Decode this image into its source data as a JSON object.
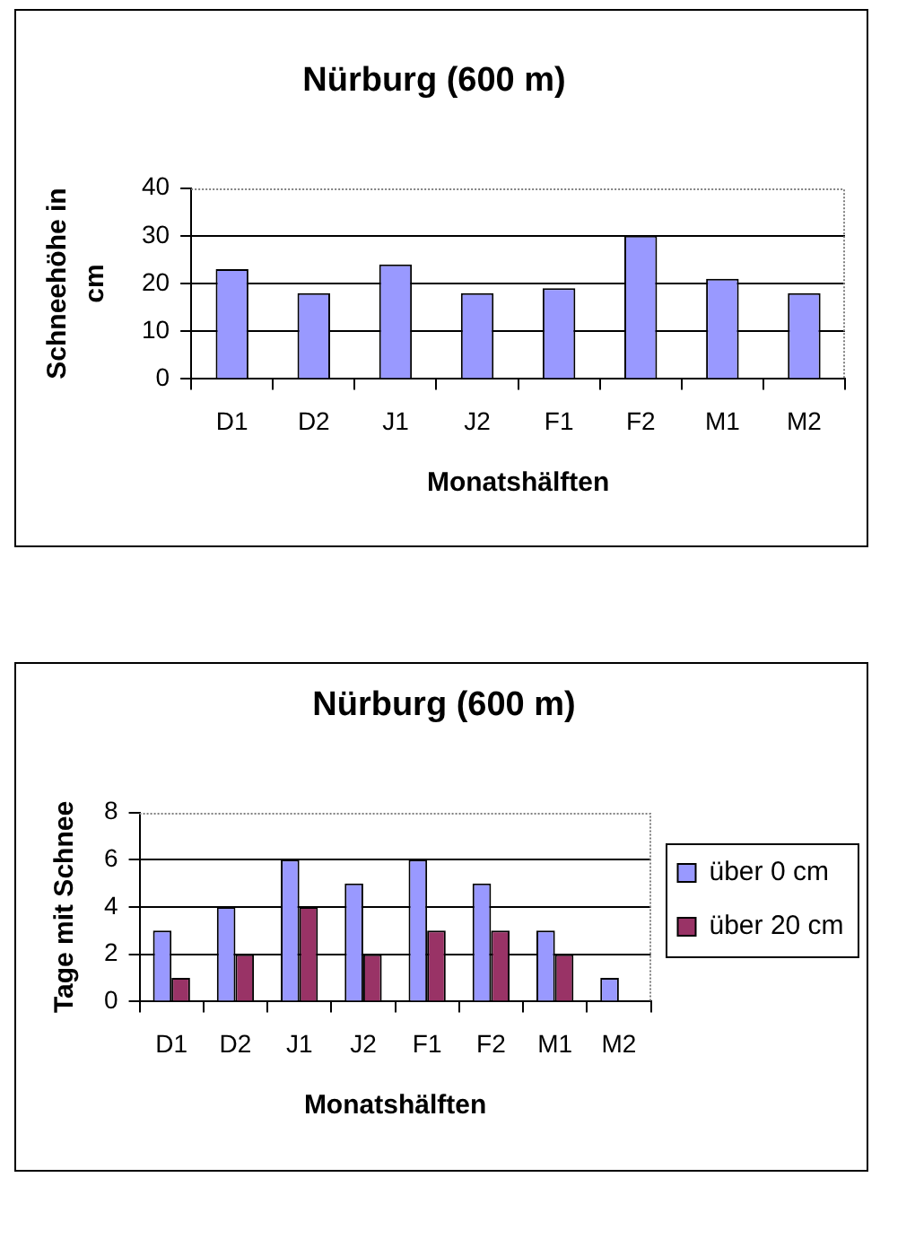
{
  "chart_data": [
    {
      "type": "bar",
      "title": "Nürburg (600 m)",
      "xlabel": "Monatshälften",
      "ylabel": "Schneehöhe in cm",
      "categories": [
        "D1",
        "D2",
        "J1",
        "J2",
        "F1",
        "F2",
        "M1",
        "M2"
      ],
      "values": [
        23,
        18,
        24,
        18,
        19,
        30,
        21,
        18
      ],
      "color": "#9999ff",
      "ylim": [
        0,
        40
      ],
      "yticks": [
        0,
        10,
        20,
        30,
        40
      ],
      "grid": "y"
    },
    {
      "type": "bar",
      "title": "Nürburg (600 m)",
      "xlabel": "Monatshälften",
      "ylabel": "Tage mit Schnee",
      "categories": [
        "D1",
        "D2",
        "J1",
        "J2",
        "F1",
        "F2",
        "M1",
        "M2"
      ],
      "series": [
        {
          "name": "über 0 cm",
          "color": "#9999ff",
          "values": [
            3,
            4,
            6,
            5,
            6,
            5,
            3,
            1
          ]
        },
        {
          "name": "über 20 cm",
          "color": "#993366",
          "values": [
            1,
            2,
            4,
            2,
            3,
            3,
            2,
            0
          ]
        }
      ],
      "ylim": [
        0,
        8
      ],
      "yticks": [
        0,
        2,
        4,
        6,
        8
      ],
      "grid": "y",
      "legend": "right"
    }
  ]
}
